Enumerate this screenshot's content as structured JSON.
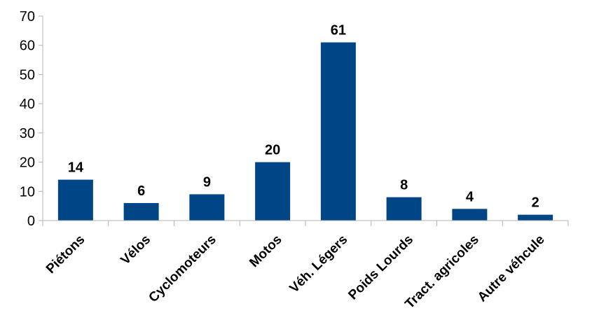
{
  "chart_data": {
    "type": "bar",
    "categories": [
      "Piétons",
      "Vélos",
      "Cyclomoteurs",
      "Motos",
      "Véh. Légers",
      "Poids Lourds",
      "Tract. agricoles",
      "Autre véhcule"
    ],
    "values": [
      14,
      6,
      9,
      20,
      61,
      8,
      4,
      2
    ],
    "ylim": [
      0,
      70
    ],
    "yticks": [
      0,
      10,
      20,
      30,
      40,
      50,
      60,
      70
    ],
    "grid": false,
    "data_labels": true,
    "colors": {
      "bar": "#004586",
      "axis": "#b3b3b3"
    }
  }
}
